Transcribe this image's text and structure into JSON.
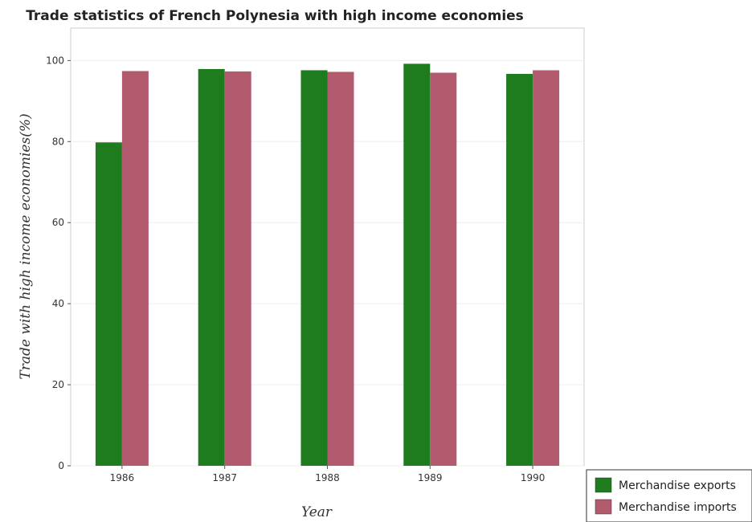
{
  "chart_data": {
    "type": "bar",
    "title": "Trade statistics of French Polynesia with high income economies",
    "xlabel": "Year",
    "ylabel": "Trade with high income economies(%)",
    "categories": [
      "1986",
      "1987",
      "1988",
      "1989",
      "1990"
    ],
    "series": [
      {
        "name": "Merchandise exports",
        "color": "#1e7b1e",
        "values": [
          79.8,
          97.9,
          97.6,
          99.2,
          96.7
        ]
      },
      {
        "name": "Merchandise imports",
        "color": "#b25a6e",
        "values": [
          97.4,
          97.3,
          97.2,
          97.0,
          97.6
        ]
      }
    ],
    "ylim": [
      0,
      108
    ],
    "yticks": [
      0,
      20,
      40,
      60,
      80,
      100
    ],
    "grid": true,
    "legend_position": "bottom-right"
  }
}
